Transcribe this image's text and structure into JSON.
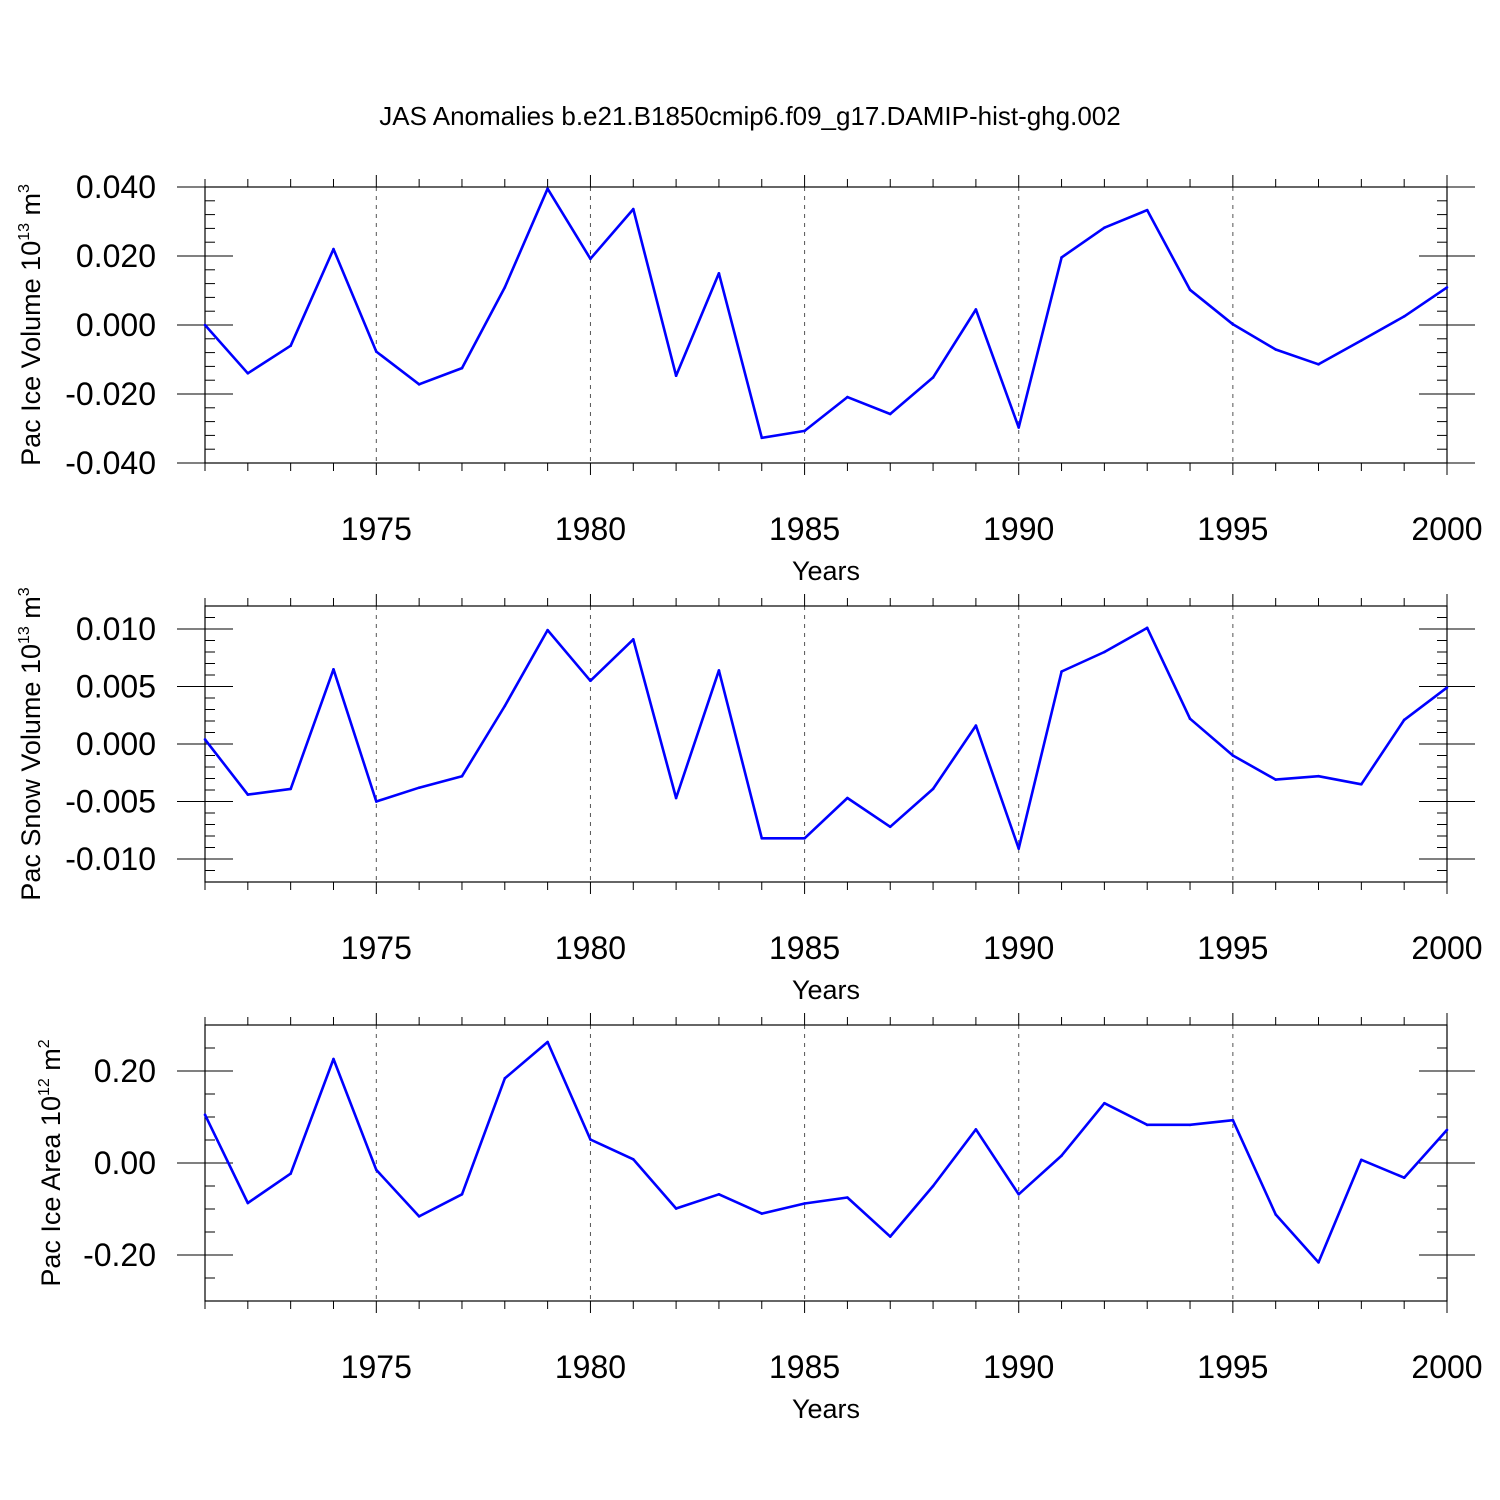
{
  "title": "JAS Anomalies b.e21.B1850cmip6.f09_g17.DAMIP-hist-ghg.002",
  "chart_data": [
    {
      "type": "line",
      "ylabel": "Pac Ice Volume 10",
      "ylabel_exp": "13",
      "ylabel_unit": " m",
      "ylabel_unit_exp": "3",
      "xlabel": "Years",
      "xlim": [
        1971,
        2000
      ],
      "ylim": [
        -0.04,
        0.04
      ],
      "ytick_values": [
        -0.04,
        -0.02,
        0.0,
        0.02,
        0.04
      ],
      "ytick_labels": [
        "-0.040",
        "-0.020",
        "0.000",
        "0.020",
        "0.040"
      ],
      "yminor_step": 0.004,
      "xtick_values": [
        1975,
        1980,
        1985,
        1990,
        1995,
        2000
      ],
      "xtick_labels": [
        "1975",
        "1980",
        "1985",
        "1990",
        "1995",
        "2000"
      ],
      "x": [
        1971,
        1972,
        1973,
        1974,
        1975,
        1976,
        1977,
        1978,
        1979,
        1980,
        1981,
        1982,
        1983,
        1984,
        1985,
        1986,
        1987,
        1988,
        1989,
        1990,
        1991,
        1992,
        1993,
        1994,
        1995,
        1996,
        1997,
        1998,
        1999,
        2000
      ],
      "series": [
        {
          "name": "Pac Ice Volume",
          "color": "#0000ff",
          "values": [
            0.0,
            -0.014,
            -0.006,
            0.022,
            -0.0077,
            -0.0172,
            -0.0125,
            0.0109,
            0.0395,
            0.0192,
            0.0336,
            -0.0147,
            0.015,
            -0.0327,
            -0.0307,
            -0.0209,
            -0.0258,
            -0.0152,
            0.0045,
            -0.0297,
            0.0196,
            0.0282,
            0.0333,
            0.0102,
            0.0002,
            -0.0071,
            -0.0114,
            -0.0045,
            0.0025,
            0.0109
          ]
        }
      ]
    },
    {
      "type": "line",
      "ylabel": "Pac Snow Volume 10",
      "ylabel_exp": "13",
      "ylabel_unit": " m",
      "ylabel_unit_exp": "3",
      "xlabel": "Years",
      "xlim": [
        1971,
        2000
      ],
      "ylim": [
        -0.012,
        0.012
      ],
      "ytick_values": [
        -0.01,
        -0.005,
        0.0,
        0.005,
        0.01
      ],
      "ytick_labels": [
        "-0.010",
        "-0.005",
        "0.000",
        "0.005",
        "0.010"
      ],
      "yminor_step": 0.001,
      "xtick_values": [
        1975,
        1980,
        1985,
        1990,
        1995,
        2000
      ],
      "xtick_labels": [
        "1975",
        "1980",
        "1985",
        "1990",
        "1995",
        "2000"
      ],
      "x": [
        1971,
        1972,
        1973,
        1974,
        1975,
        1976,
        1977,
        1978,
        1979,
        1980,
        1981,
        1982,
        1983,
        1984,
        1985,
        1986,
        1987,
        1988,
        1989,
        1990,
        1991,
        1992,
        1993,
        1994,
        1995,
        1996,
        1997,
        1998,
        1999,
        2000
      ],
      "series": [
        {
          "name": "Pac Snow Volume",
          "color": "#0000ff",
          "values": [
            0.0004,
            -0.0044,
            -0.0039,
            0.0065,
            -0.005,
            -0.0038,
            -0.0028,
            0.0033,
            0.0099,
            0.0055,
            0.0091,
            -0.0047,
            0.0064,
            -0.0082,
            -0.0082,
            -0.0047,
            -0.0072,
            -0.0039,
            0.0016,
            -0.0091,
            0.0063,
            0.008,
            0.0101,
            0.0022,
            -0.001,
            -0.0031,
            -0.0028,
            -0.0035,
            0.0021,
            0.0049
          ]
        }
      ]
    },
    {
      "type": "line",
      "ylabel": "Pac Ice Area 10",
      "ylabel_exp": "12",
      "ylabel_unit": " m",
      "ylabel_unit_exp": "2",
      "xlabel": "Years",
      "xlim": [
        1971,
        2000
      ],
      "ylim": [
        -0.3,
        0.3
      ],
      "ytick_values": [
        -0.2,
        0.0,
        0.2
      ],
      "ytick_labels": [
        "-0.20",
        "0.00",
        "0.20"
      ],
      "yminor_step": 0.05,
      "xtick_values": [
        1975,
        1980,
        1985,
        1990,
        1995,
        2000
      ],
      "xtick_labels": [
        "1975",
        "1980",
        "1985",
        "1990",
        "1995",
        "2000"
      ],
      "x": [
        1971,
        1972,
        1973,
        1974,
        1975,
        1976,
        1977,
        1978,
        1979,
        1980,
        1981,
        1982,
        1983,
        1984,
        1985,
        1986,
        1987,
        1988,
        1989,
        1990,
        1991,
        1992,
        1993,
        1994,
        1995,
        1996,
        1997,
        1998,
        1999,
        2000
      ],
      "series": [
        {
          "name": "Pac Ice Area",
          "color": "#0000ff",
          "values": [
            0.105,
            -0.087,
            -0.023,
            0.226,
            -0.015,
            -0.116,
            -0.068,
            0.184,
            0.263,
            0.051,
            0.008,
            -0.099,
            -0.068,
            -0.11,
            -0.088,
            -0.075,
            -0.16,
            -0.05,
            0.073,
            -0.068,
            0.016,
            0.13,
            0.083,
            0.083,
            0.093,
            -0.112,
            -0.216,
            0.007,
            -0.032,
            0.072
          ]
        }
      ]
    }
  ]
}
